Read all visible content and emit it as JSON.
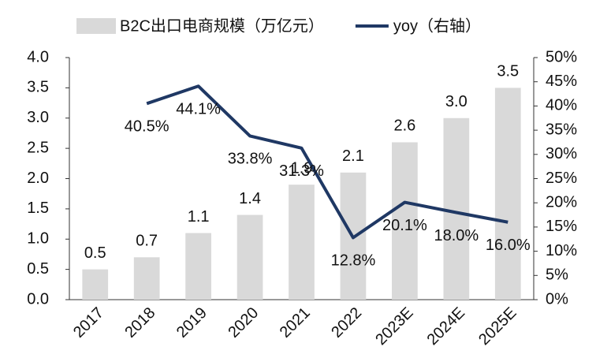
{
  "chart_data": {
    "type": "bar+line",
    "categories": [
      "2017",
      "2018",
      "2019",
      "2020",
      "2021",
      "2022",
      "2023E",
      "2024E",
      "2025E"
    ],
    "series": [
      {
        "name": "B2C出口电商规模（万亿元）",
        "type": "bar",
        "color": "#d9d9d9",
        "values": [
          0.5,
          0.7,
          1.1,
          1.4,
          1.9,
          2.1,
          2.6,
          3.0,
          3.5
        ],
        "value_labels": [
          "0.5",
          "0.7",
          "1.1",
          "1.4",
          "1.9",
          "2.1",
          "2.6",
          "3.0",
          "3.5"
        ]
      },
      {
        "name": "yoy（右轴）",
        "type": "line",
        "axis": "y2",
        "color": "#1f3864",
        "values": [
          null,
          40.5,
          44.1,
          33.8,
          31.3,
          12.8,
          20.1,
          18.0,
          16.0
        ],
        "value_labels": [
          null,
          "40.5%",
          "44.1%",
          "33.8%",
          "31.3%",
          "12.8%",
          "20.1%",
          "18.0%",
          "16.0%"
        ]
      }
    ],
    "ylim": [
      0,
      4
    ],
    "yticks": [
      {
        "value": 0,
        "label": "0.0"
      },
      0.5,
      {
        "value": 1,
        "label": "1.0"
      },
      1.5,
      {
        "value": 2,
        "label": "2.0"
      },
      2.5,
      {
        "value": 3,
        "label": "3.0"
      },
      3.5,
      {
        "value": 4,
        "label": "4.0"
      }
    ],
    "y2lim": [
      0,
      50
    ],
    "y2ticks": [
      {
        "value": 0,
        "label": "0%"
      },
      {
        "value": 5,
        "label": "5%"
      },
      {
        "value": 10,
        "label": "10%"
      },
      {
        "value": 15,
        "label": "15%"
      },
      {
        "value": 20,
        "label": "20%"
      },
      {
        "value": 25,
        "label": "25%"
      },
      {
        "value": 30,
        "label": "30%"
      },
      {
        "value": 35,
        "label": "35%"
      },
      {
        "value": 40,
        "label": "40%"
      },
      {
        "value": 45,
        "label": "45%"
      },
      {
        "value": 50,
        "label": "50%"
      }
    ],
    "legend": "top"
  }
}
